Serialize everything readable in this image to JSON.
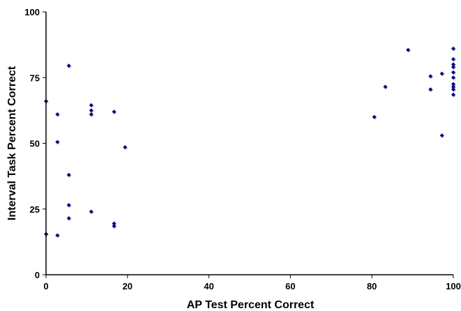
{
  "chart_data": {
    "type": "scatter",
    "title": "",
    "xlabel": "AP Test Percent Correct",
    "ylabel": "Interval Task Percent Correct",
    "xlim": [
      0,
      100
    ],
    "ylim": [
      0,
      100
    ],
    "xticks": [
      "0",
      "20",
      "40",
      "60",
      "80",
      "100"
    ],
    "yticks": [
      "0",
      "25",
      "50",
      "75",
      "100"
    ],
    "grid": false,
    "legend": "none",
    "marker_color": "#00007F",
    "points": [
      {
        "x": 0,
        "y": 66
      },
      {
        "x": 0,
        "y": 15.5
      },
      {
        "x": 2.8,
        "y": 61
      },
      {
        "x": 2.8,
        "y": 50.5
      },
      {
        "x": 2.8,
        "y": 15
      },
      {
        "x": 5.6,
        "y": 79.5
      },
      {
        "x": 5.6,
        "y": 38
      },
      {
        "x": 5.6,
        "y": 26.5
      },
      {
        "x": 5.6,
        "y": 21.5
      },
      {
        "x": 11.1,
        "y": 64.5
      },
      {
        "x": 11.1,
        "y": 62.5
      },
      {
        "x": 11.1,
        "y": 61
      },
      {
        "x": 11.1,
        "y": 24
      },
      {
        "x": 16.7,
        "y": 62
      },
      {
        "x": 16.7,
        "y": 19.5
      },
      {
        "x": 16.7,
        "y": 18.5
      },
      {
        "x": 19.4,
        "y": 48.5
      },
      {
        "x": 80.6,
        "y": 60
      },
      {
        "x": 83.3,
        "y": 71.5
      },
      {
        "x": 88.9,
        "y": 85.5
      },
      {
        "x": 94.4,
        "y": 75.5
      },
      {
        "x": 94.4,
        "y": 70.5
      },
      {
        "x": 97.2,
        "y": 76.5
      },
      {
        "x": 97.2,
        "y": 53
      },
      {
        "x": 100,
        "y": 86
      },
      {
        "x": 100,
        "y": 82
      },
      {
        "x": 100,
        "y": 80
      },
      {
        "x": 100,
        "y": 79
      },
      {
        "x": 100,
        "y": 77
      },
      {
        "x": 100,
        "y": 75
      },
      {
        "x": 100,
        "y": 72.5
      },
      {
        "x": 100,
        "y": 71.5
      },
      {
        "x": 100,
        "y": 70.5
      },
      {
        "x": 100,
        "y": 68.5
      }
    ]
  }
}
